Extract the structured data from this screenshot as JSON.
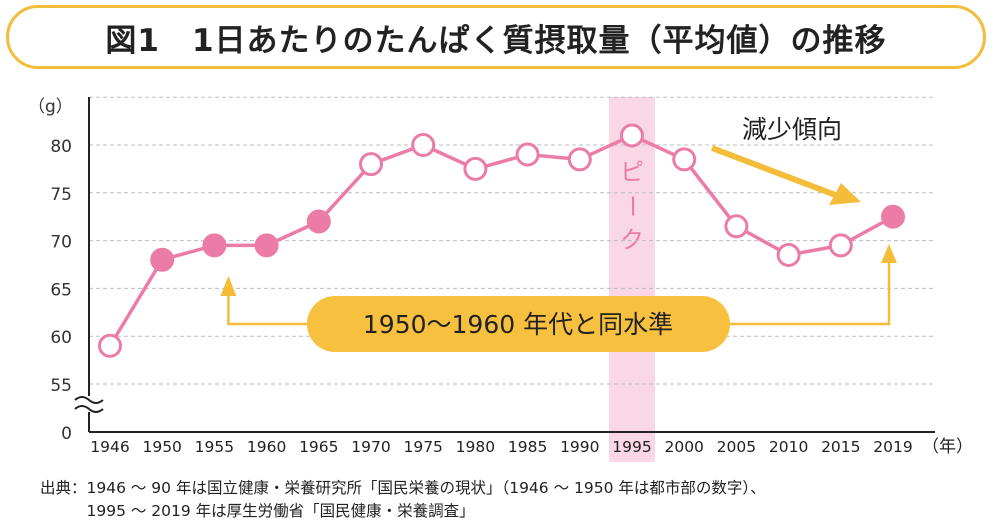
{
  "title": "図1　1日あたりのたんぱく質摂取量（平均値）の推移",
  "chart_data": {
    "type": "line",
    "ylabel": "（g）",
    "xlabel": "（年）",
    "y_ticks": [
      "0",
      "55",
      "60",
      "65",
      "70",
      "75",
      "80"
    ],
    "y_axis_break": true,
    "ylim": [
      55,
      85
    ],
    "categories": [
      "1946",
      "1950",
      "1955",
      "1960",
      "1965",
      "1970",
      "1975",
      "1980",
      "1985",
      "1990",
      "1995",
      "2000",
      "2005",
      "2010",
      "2015",
      "2019"
    ],
    "series": [
      {
        "values": [
          59.0,
          68.0,
          69.5,
          69.5,
          72.0,
          78.0,
          80.0,
          77.5,
          79.0,
          78.5,
          81.0,
          78.5,
          71.5,
          68.5,
          69.5,
          72.5
        ],
        "marker_style": [
          "open",
          "filled",
          "filled",
          "filled",
          "filled",
          "open",
          "open",
          "open",
          "open",
          "open",
          "open",
          "open",
          "open",
          "open",
          "open",
          "filled"
        ]
      }
    ],
    "grid": "horizontal dashed",
    "highlight": {
      "category": "1995",
      "label": "ピーク"
    },
    "annotations": [
      {
        "text": "減少傾向"
      },
      {
        "text": "1950〜1960 年代と同水準"
      }
    ]
  },
  "colors": {
    "line": "#ea7ca7",
    "marker_fill": "#ea7ca7",
    "marker_open_fill": "#ffffff",
    "highlight_band": "#fad7e4",
    "highlight_text": "#ea7ca7",
    "arrow": "#f3bd3a",
    "callout_fill": "#f7c03e",
    "grid": "#bdbdbd",
    "axis": "#222222",
    "title_border": "#f3bd3a"
  },
  "source": {
    "line1": "出典：1946 〜 90 年は国立健康・栄養研究所「国民栄養の現状」（1946 〜 1950 年は都市部の数字）、",
    "line2": "　　　1995 〜 2019 年は厚生労働省「国民健康・栄養調査」"
  }
}
